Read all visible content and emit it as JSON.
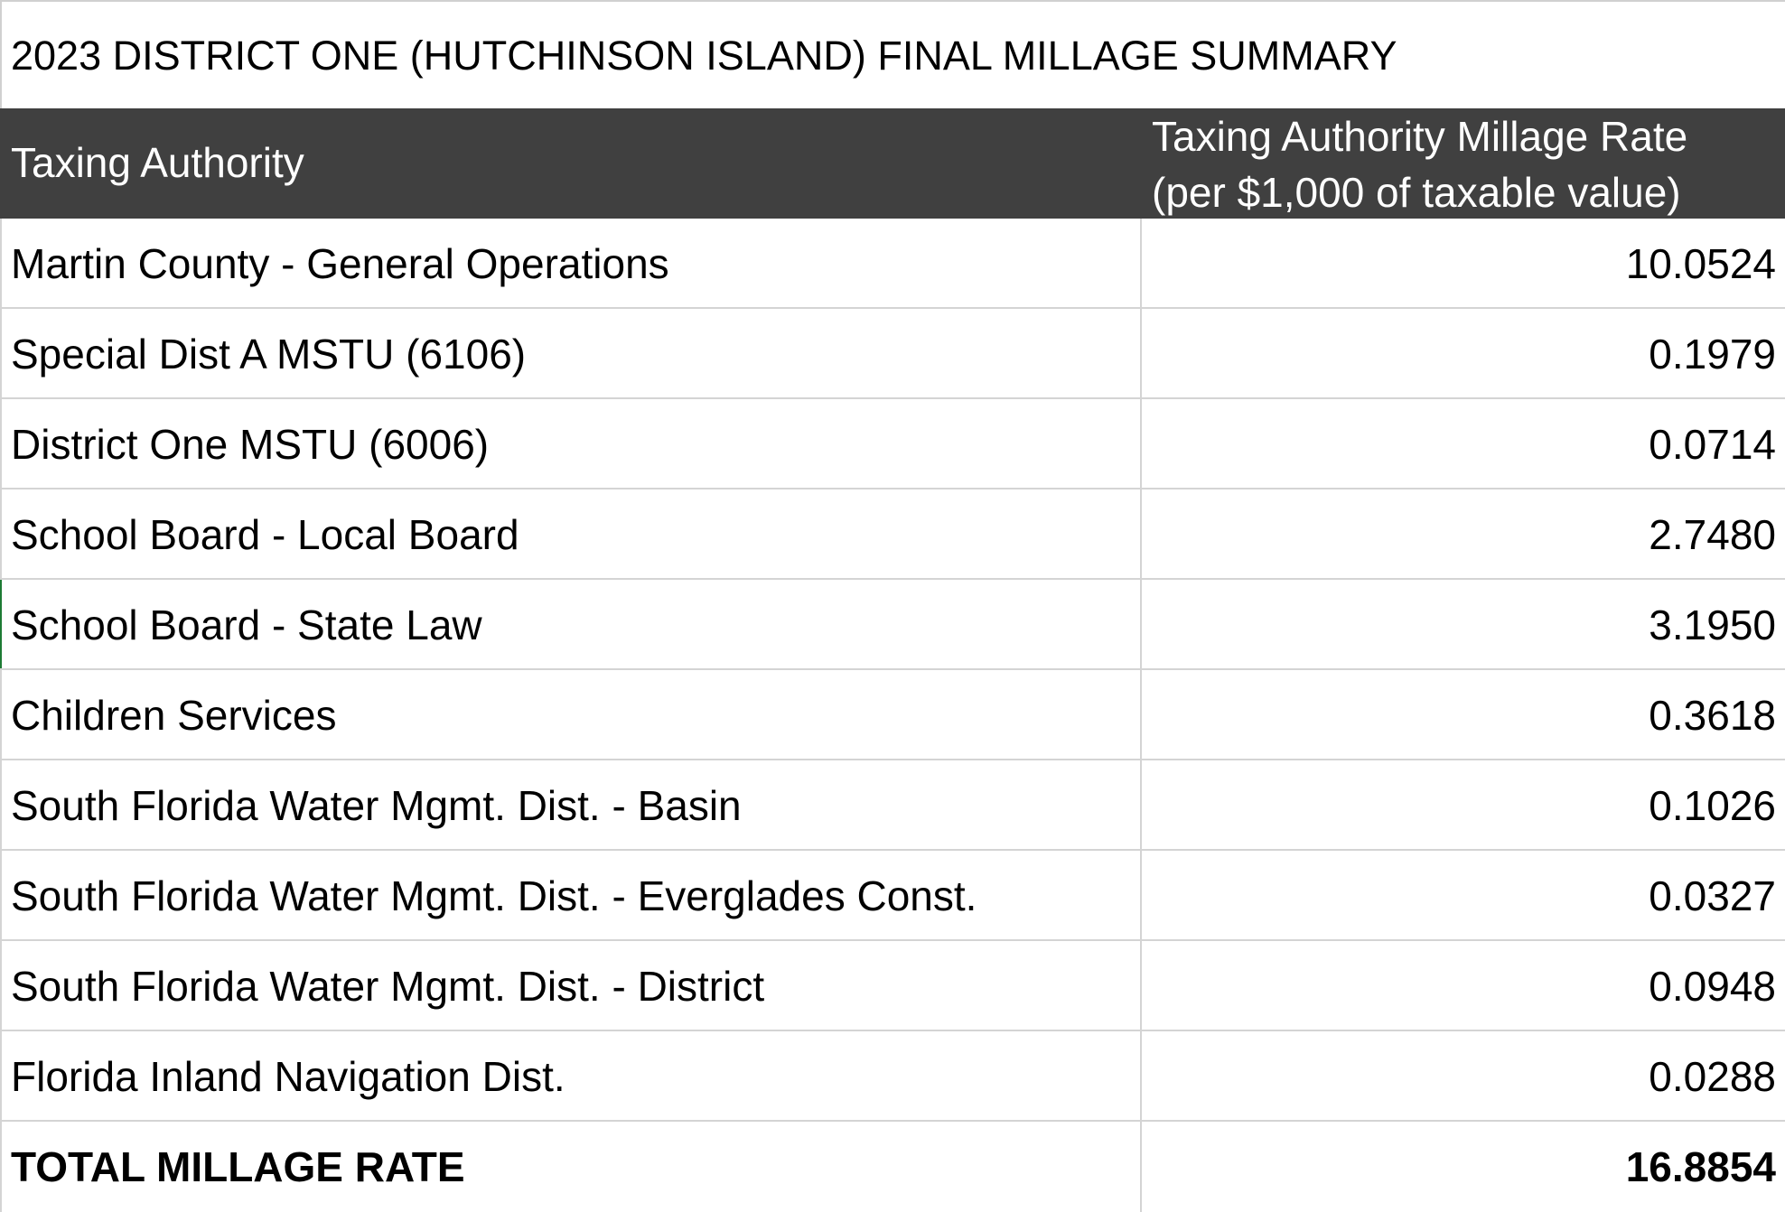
{
  "title": "2023 DISTRICT ONE (HUTCHINSON ISLAND) FINAL MILLAGE SUMMARY",
  "header": {
    "authority_label": "Taxing Authority",
    "rate_label_line1": "Taxing Authority Millage Rate",
    "rate_label_line2": "(per $1,000 of taxable value)"
  },
  "rows": [
    {
      "authority": "Martin County - General Operations",
      "rate": "10.0524"
    },
    {
      "authority": "Special Dist A MSTU (6106)",
      "rate": "0.1979"
    },
    {
      "authority": "District One MSTU (6006)",
      "rate": "0.0714"
    },
    {
      "authority": "School Board - Local Board",
      "rate": "2.7480"
    },
    {
      "authority": "School Board - State Law",
      "rate": "3.1950"
    },
    {
      "authority": "Children Services",
      "rate": "0.3618"
    },
    {
      "authority": "South Florida Water Mgmt. Dist. - Basin",
      "rate": "0.1026"
    },
    {
      "authority": "South Florida Water Mgmt. Dist. - Everglades Const.",
      "rate": "0.0327"
    },
    {
      "authority": "South Florida Water Mgmt. Dist. - District",
      "rate": "0.0948"
    },
    {
      "authority": "Florida Inland Navigation Dist.",
      "rate": "0.0288"
    }
  ],
  "total": {
    "label": "TOTAL MILLAGE RATE",
    "rate": "16.8854"
  },
  "colors": {
    "header_bg": "#404040",
    "header_text": "#ffffff",
    "grid_line": "#d4d4d4",
    "selection_accent": "#1e7b34"
  }
}
